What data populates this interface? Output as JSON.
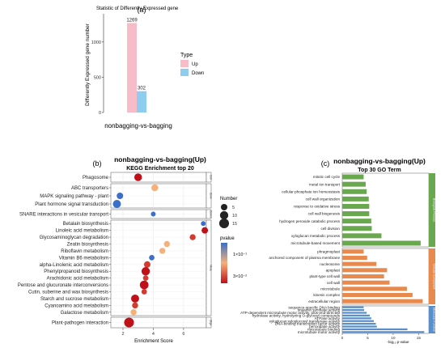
{
  "colors": {
    "up_bar": "#f8bcc9",
    "down_bar": "#8ecdf0",
    "go_bp": "#6aa84f",
    "go_cc": "#e8894e",
    "go_mf": "#5a8fc9",
    "pvalue_high": "#3b6fc9",
    "pvalue_mid": "#f6b07a",
    "pvalue_low": "#c0101a",
    "panel_bg": "#ffffff",
    "strip_bg": "#ffffff"
  },
  "chart_data": [
    {
      "panel": "(a)",
      "type": "bar",
      "title": "Statistic of Differently Expressed gene",
      "ylabel": "Differently Expressed gene number",
      "xlabel": "",
      "categories": [
        "nonbagging-vs-bagging"
      ],
      "series": [
        {
          "name": "Up",
          "values": [
            1269
          ]
        },
        {
          "name": "Down",
          "values": [
            302
          ]
        }
      ],
      "value_labels": [
        "1269",
        "302"
      ],
      "ylim": [
        0,
        1400
      ],
      "yticks": [
        0,
        500,
        1000
      ],
      "legend_title": "Type",
      "legend_position": "right",
      "grid": false
    },
    {
      "panel": "(b)",
      "type": "scatter",
      "title": "nonbagging-vs-bagging(Up)",
      "subtitle": "KEGG Enrichment top 20",
      "xlabel": "Enrichment Score",
      "ylabel": "",
      "xlim": [
        1.2,
        7.5
      ],
      "xticks": [
        2,
        4,
        6
      ],
      "grid": true,
      "size_legend_title": "Number",
      "size_legend_values": [
        5,
        10,
        15
      ],
      "color_legend_title": "pvalue",
      "color_legend_labels": [
        "1×10⁻¹",
        "3×10⁻²"
      ],
      "color_legend_values": [
        0.1,
        0.03
      ],
      "facets": [
        {
          "label": "Cellular Processes",
          "strip": "Cell",
          "points": [
            {
              "term": "Phagosome",
              "x": 3.0,
              "size": 8,
              "pvalue": 0.001
            }
          ]
        },
        {
          "label": "Environmental Information Processing",
          "strip": "Envir",
          "points": [
            {
              "term": "ABC transporters",
              "x": 4.1,
              "size": 6,
              "pvalue": 0.05
            },
            {
              "term": "MAPK signaling pathway - plant",
              "x": 1.8,
              "size": 5,
              "pvalue": 0.09
            },
            {
              "term": "Plant hormone signal transduction",
              "x": 1.6,
              "size": 9,
              "pvalue": 0.12
            }
          ]
        },
        {
          "label": "Genetic Information Processing",
          "strip": "Genet",
          "points": [
            {
              "term": "SNARE interactions in vesicular transport",
              "x": 4.0,
              "size": 2,
              "pvalue": 0.1
            }
          ]
        },
        {
          "label": "Metabolism",
          "strip": "Meta",
          "points": [
            {
              "term": "Betalain biosynthesis",
              "x": 7.3,
              "size": 2,
              "pvalue": 0.12
            },
            {
              "term": "Linoleic acid metabolism",
              "x": 7.4,
              "size": 5,
              "pvalue": 0.005
            },
            {
              "term": "Glycosaminoglycan degradation",
              "x": 6.6,
              "size": 4,
              "pvalue": 0.01
            },
            {
              "term": "Zeatin biosynthesis",
              "x": 4.9,
              "size": 4,
              "pvalue": 0.04
            },
            {
              "term": "Riboflavin metabolism",
              "x": 4.6,
              "size": 4,
              "pvalue": 0.05
            },
            {
              "term": "Vitamin B6 metabolism",
              "x": 3.9,
              "size": 3,
              "pvalue": 0.08
            },
            {
              "term": "alpha-Linolenic acid metabolism",
              "x": 3.6,
              "size": 5,
              "pvalue": 0.01
            },
            {
              "term": "Phenylpropanoid biosynthesis",
              "x": 3.5,
              "size": 10,
              "pvalue": 0.002
            },
            {
              "term": "Arachidonic acid metabolism",
              "x": 3.5,
              "size": 3,
              "pvalue": 0.02
            },
            {
              "term": "Pentose and glucuronate interconversions",
              "x": 3.4,
              "size": 11,
              "pvalue": 0.002
            },
            {
              "term": "Cutin, suberine and wax biosynthesis",
              "x": 3.4,
              "size": 3,
              "pvalue": 0.02
            },
            {
              "term": "Starch and sucrose metabolism",
              "x": 2.8,
              "size": 9,
              "pvalue": 0.003
            },
            {
              "term": "Cyanoamino acid metabolism",
              "x": 2.8,
              "size": 4,
              "pvalue": 0.02
            },
            {
              "term": "Galactose metabolism",
              "x": 2.7,
              "size": 4,
              "pvalue": 0.03
            }
          ]
        },
        {
          "label": "Organismal Systems",
          "strip": "Orga",
          "points": [
            {
              "term": "Plant-pathogen interaction",
              "x": 2.4,
              "size": 15,
              "pvalue": 0.001
            }
          ]
        }
      ]
    },
    {
      "panel": "(c)",
      "type": "bar",
      "orientation": "horizontal",
      "title": "nonbagging-vs-bagging(Up)",
      "subtitle": "Top 30 GO Term",
      "xlabel": "-log₁₀ p-value",
      "xlim": [
        0,
        17
      ],
      "xticks": [
        0,
        5,
        10,
        15
      ],
      "grid": false,
      "groups": [
        {
          "name": "Biological Process",
          "terms": [
            "mitotic cell cycle",
            "metal ion transport",
            "cellular phosphate ion homeostasis",
            "cell wall organization",
            "response to oxidative stress",
            "cell wall biogenesis",
            "hydrogen peroxide catabolic process",
            "cell division",
            "xyloglucan metabolic process",
            "microtubule-based movement"
          ],
          "values": [
            4.2,
            4.6,
            4.8,
            5.2,
            5.3,
            5.3,
            5.7,
            5.8,
            7.7,
            15.4
          ]
        },
        {
          "name": "Cellular Component",
          "terms": [
            "phragmoplast",
            "anchored component of plasma membrane",
            "nucleosome",
            "apoplast",
            "plant-type cell wall",
            "cell wall",
            "microtubule",
            "kinesin complex",
            "extracellular region"
          ],
          "values": [
            4.2,
            4.9,
            6.7,
            8.8,
            8.2,
            9.3,
            12.7,
            13.8,
            15.8
          ]
        },
        {
          "name": "Molecular Function",
          "terms": [
            "sequence-specific DNA binding",
            "tinaamin synthase activity",
            "ATP-dependent microtubule motor activity, plus-end-directed",
            "hydrolase activity, hydrolyzing O-glycosyl compounds",
            "ATPase activity",
            "xyloglucan:xyloglucosyl transferase activity",
            "DNA-binding transcription factor activity",
            "peroxidase activity",
            "microtubule binding",
            "microtubule motor activity"
          ],
          "values": [
            4.2,
            4.3,
            4.8,
            5.4,
            5.7,
            6.2,
            6.6,
            6.8,
            12.8,
            16.1
          ]
        }
      ]
    }
  ]
}
